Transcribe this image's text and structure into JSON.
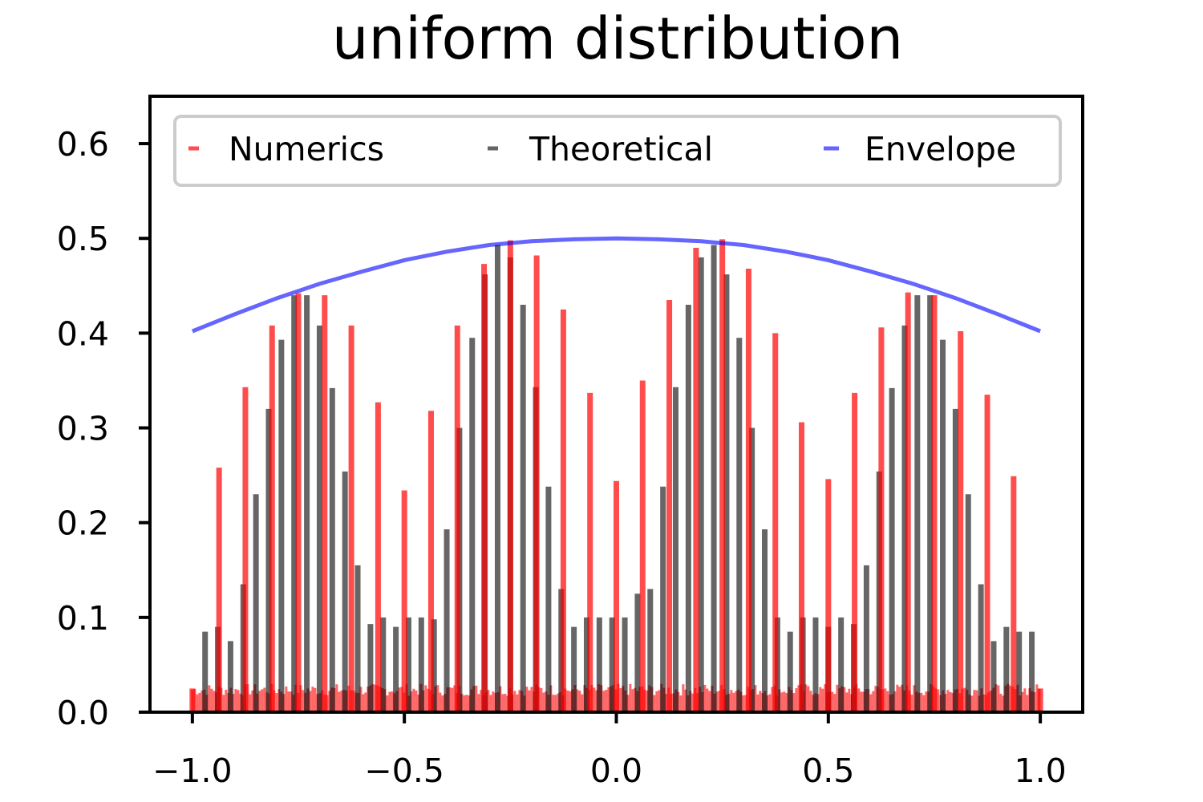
{
  "chart_data": {
    "type": "bar",
    "title": "uniform distribution",
    "xlabel": "",
    "ylabel": "",
    "xlim": [
      -1.1,
      1.1
    ],
    "ylim": [
      0,
      0.65
    ],
    "xticks": [
      -1.0,
      -0.5,
      0.0,
      0.5,
      1.0
    ],
    "xtick_labels": [
      "−1.0",
      "−0.5",
      "0.0",
      "0.5",
      "1.0"
    ],
    "yticks": [
      0.0,
      0.1,
      0.2,
      0.3,
      0.4,
      0.5,
      0.6
    ],
    "ytick_labels": [
      "0.0",
      "0.1",
      "0.2",
      "0.3",
      "0.4",
      "0.5",
      "0.6"
    ],
    "grid": false,
    "legend": {
      "placement": "top",
      "columns": 3
    },
    "series": [
      {
        "name": "Numerics",
        "kind": "spikes",
        "color": "#ff0000",
        "opacity": 0.7,
        "x": [
          -1.0,
          -0.937,
          -0.875,
          -0.812,
          -0.75,
          -0.688,
          -0.625,
          -0.562,
          -0.5,
          -0.437,
          -0.375,
          -0.312,
          -0.25,
          -0.188,
          -0.125,
          -0.062,
          0.0,
          0.062,
          0.125,
          0.188,
          0.25,
          0.312,
          0.375,
          0.437,
          0.5,
          0.562,
          0.625,
          0.688,
          0.75,
          0.812,
          0.875,
          0.937,
          1.0
        ],
        "values": [
          0.025,
          0.258,
          0.343,
          0.408,
          0.442,
          0.44,
          0.408,
          0.327,
          0.234,
          0.318,
          0.408,
          0.473,
          0.498,
          0.482,
          0.425,
          0.337,
          0.244,
          0.35,
          0.435,
          0.49,
          0.499,
          0.468,
          0.4,
          0.306,
          0.246,
          0.337,
          0.406,
          0.443,
          0.44,
          0.402,
          0.335,
          0.249,
          0.025
        ],
        "baseline_noise_level": 0.028
      },
      {
        "name": "Theoretical",
        "kind": "spikes",
        "color": "#000000",
        "opacity": 0.6,
        "x": [
          -0.97,
          -0.94,
          -0.91,
          -0.88,
          -0.85,
          -0.82,
          -0.79,
          -0.76,
          -0.73,
          -0.7,
          -0.67,
          -0.64,
          -0.61,
          -0.58,
          -0.55,
          -0.52,
          -0.49,
          -0.46,
          -0.43,
          -0.4,
          -0.37,
          -0.34,
          -0.31,
          -0.28,
          -0.25,
          -0.22,
          -0.19,
          -0.16,
          -0.13,
          -0.1,
          -0.07,
          -0.04,
          -0.01,
          0.02,
          0.05,
          0.08,
          0.11,
          0.14,
          0.17,
          0.2,
          0.23,
          0.26,
          0.29,
          0.32,
          0.35,
          0.38,
          0.41,
          0.44,
          0.47,
          0.5,
          0.53,
          0.56,
          0.59,
          0.62,
          0.65,
          0.68,
          0.71,
          0.74,
          0.77,
          0.8,
          0.83,
          0.86,
          0.89,
          0.92,
          0.95,
          0.98
        ],
        "values": [
          0.085,
          0.09,
          0.075,
          0.135,
          0.23,
          0.32,
          0.393,
          0.44,
          0.44,
          0.408,
          0.342,
          0.254,
          0.155,
          0.093,
          0.1,
          0.09,
          0.1,
          0.1,
          0.098,
          0.193,
          0.3,
          0.395,
          0.462,
          0.493,
          0.48,
          0.43,
          0.343,
          0.238,
          0.13,
          0.09,
          0.1,
          0.1,
          0.1,
          0.1,
          0.125,
          0.13,
          0.238,
          0.343,
          0.43,
          0.48,
          0.493,
          0.462,
          0.395,
          0.3,
          0.193,
          0.1,
          0.085,
          0.1,
          0.1,
          0.09,
          0.1,
          0.093,
          0.155,
          0.254,
          0.342,
          0.408,
          0.44,
          0.44,
          0.393,
          0.32,
          0.23,
          0.135,
          0.075,
          0.09,
          0.085,
          0.085
        ]
      },
      {
        "name": "Envelope",
        "kind": "line",
        "color": "#0000ff",
        "opacity": 0.6,
        "x": [
          -1.0,
          -0.9,
          -0.8,
          -0.7,
          -0.6,
          -0.5,
          -0.4,
          -0.3,
          -0.2,
          -0.1,
          0.0,
          0.1,
          0.2,
          0.3,
          0.4,
          0.5,
          0.6,
          0.7,
          0.8,
          0.9,
          1.0
        ],
        "values": [
          0.402,
          0.42,
          0.437,
          0.452,
          0.465,
          0.477,
          0.486,
          0.493,
          0.497,
          0.499,
          0.5,
          0.499,
          0.497,
          0.493,
          0.486,
          0.477,
          0.465,
          0.452,
          0.437,
          0.42,
          0.402
        ]
      }
    ]
  }
}
